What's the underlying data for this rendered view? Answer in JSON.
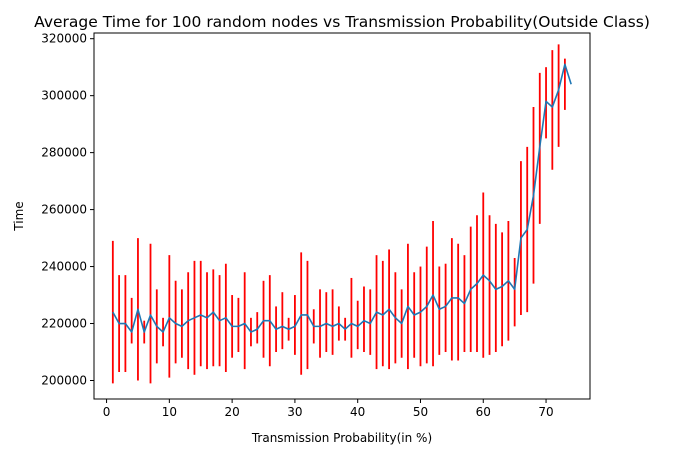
{
  "chart_data": {
    "type": "line",
    "title": "Average Time for 100 random nodes vs Transmission Probability(Outside Class)",
    "xlabel": "Transmission Probability(in %)",
    "ylabel": "Time",
    "xlim": [
      -2,
      77
    ],
    "ylim": [
      193500,
      322000
    ],
    "x_ticks": [
      0,
      10,
      20,
      30,
      40,
      50,
      60,
      70
    ],
    "y_ticks": [
      200000,
      220000,
      240000,
      260000,
      280000,
      300000,
      320000
    ],
    "grid": false,
    "legend": "none",
    "colors": {
      "line": "#1f77b4",
      "errorbar": "#ff0000"
    },
    "series": [
      {
        "style": "line",
        "x": [
          1,
          2,
          3,
          4,
          5,
          6,
          7,
          8,
          9,
          10,
          11,
          12,
          13,
          14,
          15,
          16,
          17,
          18,
          19,
          20,
          21,
          22,
          23,
          24,
          25,
          26,
          27,
          28,
          29,
          30,
          31,
          32,
          33,
          34,
          35,
          36,
          37,
          38,
          39,
          40,
          41,
          42,
          43,
          44,
          45,
          46,
          47,
          48,
          49,
          50,
          51,
          52,
          53,
          54,
          55,
          56,
          57,
          58,
          59,
          60,
          61,
          62,
          63,
          64,
          65,
          66,
          67,
          68,
          69,
          70,
          71,
          72,
          73,
          74
        ],
        "values": [
          224000,
          220000,
          220000,
          217000,
          225000,
          217000,
          223000,
          219000,
          217000,
          222000,
          220000,
          219000,
          221000,
          222000,
          223000,
          222000,
          224000,
          221000,
          222000,
          219000,
          219000,
          220000,
          217000,
          218000,
          221000,
          221000,
          218000,
          219000,
          218000,
          219000,
          223000,
          223000,
          219000,
          219000,
          220000,
          219000,
          220000,
          218000,
          220000,
          219000,
          221000,
          220000,
          224000,
          223000,
          225000,
          222000,
          220000,
          226000,
          223000,
          224000,
          226000,
          230000,
          225000,
          226000,
          229000,
          229000,
          227000,
          232000,
          234000,
          237000,
          235000,
          232000,
          233000,
          235000,
          232000,
          250000,
          253000,
          265000,
          282000,
          298000,
          296000,
          302000,
          311000,
          304000
        ]
      },
      {
        "style": "errorbar",
        "x": [
          1,
          2,
          3,
          4,
          5,
          6,
          7,
          8,
          9,
          10,
          11,
          12,
          13,
          14,
          15,
          16,
          17,
          18,
          19,
          20,
          21,
          22,
          23,
          24,
          25,
          26,
          27,
          28,
          29,
          30,
          31,
          32,
          33,
          34,
          35,
          36,
          37,
          38,
          39,
          40,
          41,
          42,
          43,
          44,
          45,
          46,
          47,
          48,
          49,
          50,
          51,
          52,
          53,
          54,
          55,
          56,
          57,
          58,
          59,
          60,
          61,
          62,
          63,
          64,
          65,
          66,
          67,
          68,
          69,
          70,
          71,
          72,
          73
        ],
        "low": [
          199000,
          203000,
          203000,
          213000,
          200000,
          213000,
          199000,
          206000,
          212000,
          201000,
          206000,
          208000,
          204000,
          202000,
          205000,
          204000,
          205000,
          205000,
          203000,
          208000,
          210000,
          204000,
          212000,
          213000,
          208000,
          205000,
          210000,
          211000,
          214000,
          209000,
          202000,
          204000,
          213000,
          208000,
          210000,
          209000,
          214000,
          214000,
          208000,
          211000,
          210000,
          209000,
          204000,
          205000,
          204000,
          206000,
          208000,
          204000,
          208000,
          205000,
          206000,
          205000,
          209000,
          210000,
          207000,
          207000,
          210000,
          210000,
          210000,
          208000,
          209000,
          210000,
          212000,
          214000,
          219000,
          223000,
          224000,
          234000,
          255000,
          285000,
          274000,
          282000,
          295000
        ],
        "high": [
          249000,
          237000,
          237000,
          229000,
          250000,
          221000,
          248000,
          232000,
          222000,
          244000,
          235000,
          232000,
          238000,
          242000,
          242000,
          238000,
          239000,
          237000,
          241000,
          230000,
          229000,
          238000,
          222000,
          224000,
          235000,
          237000,
          226000,
          231000,
          222000,
          230000,
          245000,
          242000,
          225000,
          232000,
          231000,
          232000,
          226000,
          222000,
          236000,
          228000,
          233000,
          232000,
          244000,
          242000,
          246000,
          238000,
          232000,
          248000,
          238000,
          240000,
          247000,
          256000,
          240000,
          241000,
          250000,
          248000,
          244000,
          254000,
          258000,
          266000,
          258000,
          255000,
          252000,
          256000,
          243000,
          277000,
          282000,
          296000,
          308000,
          310000,
          316000,
          318000,
          313000
        ]
      }
    ]
  }
}
